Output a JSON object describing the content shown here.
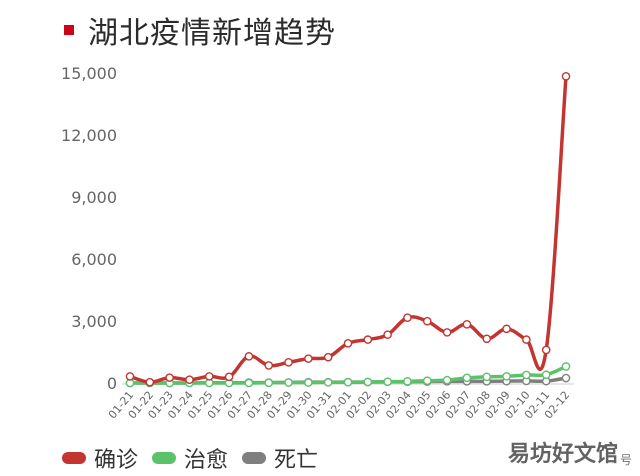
{
  "title": "湖北疫情新增趋势",
  "title_marker_color": "#d0021b",
  "watermark": {
    "main": "易坊好文馆",
    "sub": "号"
  },
  "chart_data": {
    "type": "line",
    "title": "湖北疫情新增趋势",
    "xlabel": "",
    "ylabel": "",
    "ylim": [
      0,
      15000
    ],
    "yticks": [
      0,
      3000,
      6000,
      9000,
      12000,
      15000
    ],
    "ytick_labels": [
      "0",
      "3,000",
      "6,000",
      "9,000",
      "12,000",
      "15,000"
    ],
    "grid": false,
    "legend_position": "bottom-left",
    "categories": [
      "01-21",
      "01-22",
      "01-23",
      "01-24",
      "01-25",
      "01-26",
      "01-27",
      "01-28",
      "01-29",
      "01-30",
      "01-31",
      "02-01",
      "02-02",
      "02-03",
      "02-04",
      "02-05",
      "02-06",
      "02-07",
      "02-08",
      "02-09",
      "02-10",
      "02-11",
      "02-12"
    ],
    "series": [
      {
        "name": "确诊",
        "color": "#c23531",
        "values": [
          320,
          40,
          260,
          160,
          320,
          300,
          1290,
          850,
          1000,
          1180,
          1250,
          1920,
          2100,
          2340,
          3160,
          2990,
          2450,
          2840,
          2140,
          2620,
          2100,
          1600,
          14840
        ]
      },
      {
        "name": "治愈",
        "color": "#5cc26a",
        "values": [
          0,
          0,
          0,
          0,
          0,
          0,
          0,
          10,
          20,
          20,
          30,
          40,
          50,
          60,
          80,
          110,
          140,
          250,
          300,
          320,
          390,
          400,
          800
        ]
      },
      {
        "name": "死亡",
        "color": "#7f7f7f",
        "values": [
          0,
          0,
          0,
          0,
          10,
          10,
          20,
          20,
          30,
          40,
          40,
          45,
          45,
          60,
          60,
          70,
          80,
          80,
          80,
          90,
          100,
          90,
          240
        ]
      }
    ]
  }
}
